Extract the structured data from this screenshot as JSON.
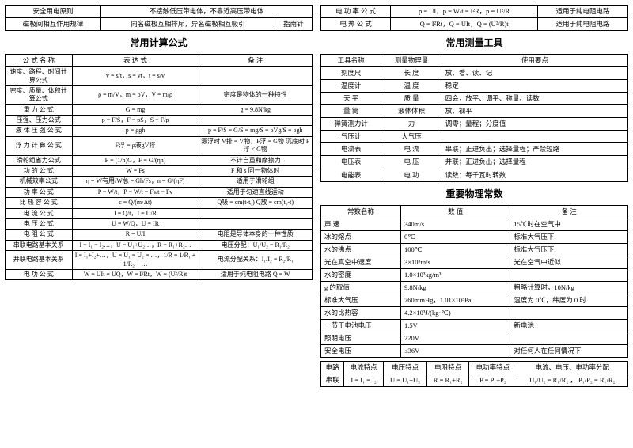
{
  "left": {
    "topRows": [
      [
        "安全用电原则",
        "不接触低压带电体，不靠近高压带电体",
        ""
      ],
      [
        "磁极间相互作用规律",
        "同名磁极互相排斥，异名磁极相互吸引",
        "指南针"
      ]
    ],
    "heading": "常用计算公式",
    "header": [
      "公 式 名 称",
      "表 达 式",
      "备 注"
    ],
    "rows": [
      [
        "速度、路程、时间计算公式",
        "v = s/t，s = vt，t = s/v",
        ""
      ],
      [
        "密度、质量、体积计算公式",
        "ρ = m/V，m = ρV，V = m/ρ",
        "密度是物体的一种特性"
      ],
      [
        "重 力 公 式",
        "G = mg",
        "g = 9.8N/kg"
      ],
      [
        "压强、压力公式",
        "p = F/S，F = pS，S = F/p",
        ""
      ],
      [
        "液 体 压 强 公 式",
        "p = ρgh",
        "p = F/S = G/S = mg/S = ρVg/S = ρgh"
      ],
      [
        "浮 力 计 算 公 式",
        "F浮 = ρ液gV排",
        "漂浮时 V排 = V物，F浮 = G物\n沉底时 F浮 < G物"
      ],
      [
        "滑轮组省力公式",
        "F = (1/n)G，F = G/(ηn)",
        "不计自重和摩擦力"
      ],
      [
        "功 的 公 式",
        "W = Fs",
        "F 和 s 同一物体时"
      ],
      [
        "机械效率公式",
        "η = W有用/W总 = Gh/Fs，n = G/(ηF)",
        "适用于滑轮组"
      ],
      [
        "功 率 公 式",
        "P = W/t，P = W/t = Fs/t = Fv",
        "适用于匀速直线运动"
      ],
      [
        "比 热 容 公 式",
        "c = Q/(m·Δt)",
        "Q吸 = cm(t-t₀)  Q放 = cm(t₀-t)"
      ],
      [
        "电 流 公 式",
        "I = Q/t，I = U/R",
        ""
      ],
      [
        "电 压 公 式",
        "U = W/Q，U = IR",
        ""
      ],
      [
        "电 阻 公 式",
        "R = U/I",
        "电阻是导体本身的一种性质"
      ],
      [
        "串联电路基本关系",
        "I = I₁ = I₂…，U = U₁+U₂…，R = R₁+R₂…",
        "电压分配：U₁/U₂ = R₁/R₂"
      ],
      [
        "并联电路基本关系",
        "I = I₁+I₂+…，U = U₁ = U₂ = …，1/R = 1/R₁ + 1/R₂ + …",
        "电流分配关系：I₁/I₂ = R₂/R₁"
      ],
      [
        "电 功 公 式",
        "W = UIt = UQ，W = I²Rt，W = (U²/R)t",
        "适用于纯电阻电路 Q = W"
      ]
    ]
  },
  "right": {
    "powerRows": [
      [
        "电 功 率 公 式",
        "p = UI，p = W/t = I²R，p = U²/R",
        "适用于纯电阻电路"
      ],
      [
        "电 热 公 式",
        "Q = I²Rt，Q = UIt，Q = (U²/R)t",
        "适用于纯电阻电路"
      ]
    ],
    "toolsHeading": "常用测量工具",
    "toolsHeader": [
      "工具名称",
      "测量物理量",
      "使用要点"
    ],
    "toolsRows": [
      [
        "刻度尺",
        "长 度",
        "放、看、读、记"
      ],
      [
        "温度计",
        "温 度",
        "稳定"
      ],
      [
        "天 平",
        "质 量",
        "四会，放平、调平、称量、读数"
      ],
      [
        "量 筒",
        "液体体积",
        "放、视平"
      ],
      [
        "弹簧测力计",
        "力",
        "调零；量程；分度值"
      ],
      [
        "气压计",
        "大气压",
        ""
      ],
      [
        "电流表",
        "电 流",
        "串联；正进负出；选择量程；严禁短路"
      ],
      [
        "电压表",
        "电 压",
        "并联；正进负出；选择量程"
      ],
      [
        "电能表",
        "电 功",
        "读数：每千瓦时转数"
      ]
    ],
    "constHeading": "重要物理常数",
    "constHeader": [
      "常数名称",
      "数 值",
      "备 注"
    ],
    "constRows": [
      [
        "声 速",
        "340m/s",
        "15℃时在空气中"
      ],
      [
        "冰的熔点",
        "0℃",
        "标准大气压下"
      ],
      [
        "水的沸点",
        "100℃",
        "标准大气压下"
      ],
      [
        "光在真空中速度",
        "3×10⁸m/s",
        "光在空气中近似"
      ],
      [
        "水的密度",
        "1.0×10³kg/m³",
        ""
      ],
      [
        "g 的取值",
        "9.8N/kg",
        "粗略计算时，10N/kg"
      ],
      [
        "标准大气压",
        "760mmHg，1.01×10⁵Pa",
        "温度为 0℃，纬度为 0 时"
      ],
      [
        "水的比热容",
        "4.2×10³J/(kg·℃)",
        ""
      ],
      [
        "一节干电池电压",
        "1.5V",
        "新电池"
      ],
      [
        "照明电压",
        "220V",
        ""
      ],
      [
        "安全电压",
        "≤36V",
        "对任何人在任何情况下"
      ]
    ],
    "circuitHeader": [
      "电路",
      "电流特点",
      "电压特点",
      "电阻特点",
      "电功率特点",
      "电流、电压、电功率分配"
    ],
    "circuitRow": [
      "串联",
      "I = I₁ = I₂",
      "U = U₁+U₂",
      "R = R₁+R₂",
      "P = P₁+P₂",
      "U₁/U₂ = R₁/R₂ ， P₁/P₂ = R₁/R₂"
    ]
  }
}
